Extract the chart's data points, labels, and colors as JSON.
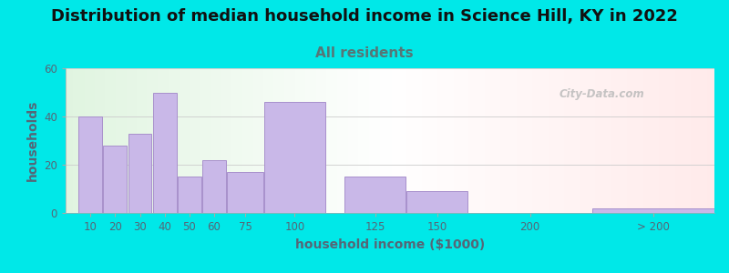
{
  "title": "Distribution of median household income in Science Hill, KY in 2022",
  "subtitle": "All residents",
  "xlabel": "household income ($1000)",
  "ylabel": "households",
  "bar_labels": [
    "10",
    "20",
    "30",
    "40",
    "50",
    "60",
    "75",
    "100",
    "125",
    "150",
    "200",
    "> 200"
  ],
  "bar_heights": [
    40,
    28,
    33,
    50,
    15,
    22,
    17,
    46,
    15,
    9,
    0,
    2
  ],
  "bar_color": "#c9b8e8",
  "bar_edge_color": "#a890cc",
  "ylim": [
    0,
    60
  ],
  "yticks": [
    0,
    20,
    40,
    60
  ],
  "background_outer": "#00e8e8",
  "title_fontsize": 13,
  "subtitle_fontsize": 11,
  "subtitle_color": "#557777",
  "axis_label_color": "#556677",
  "axis_label_fontsize": 10,
  "tick_label_fontsize": 8.5,
  "watermark_text": "City-Data.com",
  "bar_widths": [
    10,
    10,
    10,
    10,
    10,
    10,
    15,
    25,
    25,
    25,
    50,
    50
  ],
  "bar_lefts": [
    5,
    15,
    25,
    35,
    45,
    55,
    65,
    80,
    112.5,
    137.5,
    162.5,
    212.5
  ],
  "xlim": [
    0,
    262
  ]
}
